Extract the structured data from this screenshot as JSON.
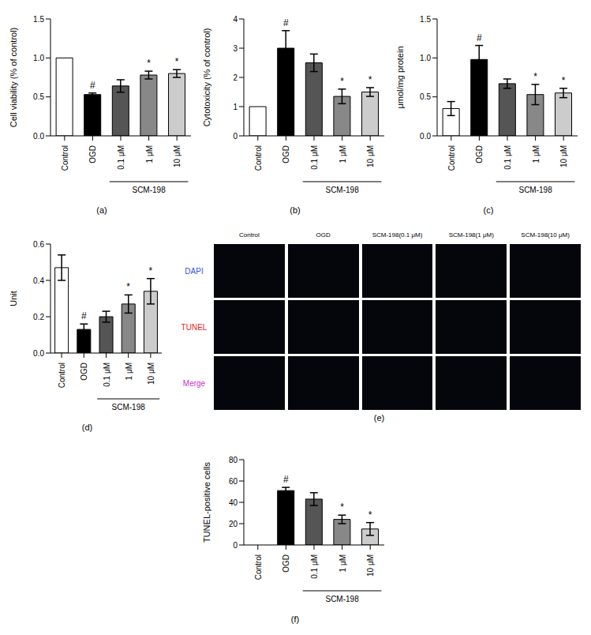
{
  "chart_data": [
    {
      "type": "bar",
      "panel": "(a)",
      "y_label": "Cell viability (% of control)",
      "categories": [
        "Control",
        "OGD",
        "0.1 μM",
        "1 μM",
        "10 μM"
      ],
      "values": [
        1.0,
        0.53,
        0.64,
        0.78,
        0.8
      ],
      "errors": [
        0,
        0.02,
        0.08,
        0.05,
        0.05
      ],
      "significance": [
        null,
        "#",
        null,
        "*",
        "*"
      ],
      "colors": [
        "#ffffff",
        "#000000",
        "#555555",
        "#888888",
        "#cccccc"
      ],
      "groups": [
        {
          "label": "SCM-198",
          "categories": [
            "0.1 μM",
            "1 μM",
            "10 μM"
          ]
        }
      ],
      "ylim": [
        0,
        1.5
      ],
      "yticks": [
        {
          "value": 0,
          "label": "0.0"
        },
        {
          "value": 0.5,
          "label": "0.5"
        },
        {
          "value": 1,
          "label": "1.0"
        },
        {
          "value": 1.5,
          "label": "1.5"
        }
      ]
    },
    {
      "type": "bar",
      "panel": "(b)",
      "y_label": "Cytotoxicity (% of control)",
      "categories": [
        "Control",
        "OGD",
        "0.1 μM",
        "1 μM",
        "10 μM"
      ],
      "values": [
        1.0,
        3.0,
        2.5,
        1.35,
        1.5
      ],
      "errors": [
        0,
        0.6,
        0.3,
        0.25,
        0.15
      ],
      "significance": [
        null,
        "#",
        null,
        "*",
        "*"
      ],
      "colors": [
        "#ffffff",
        "#000000",
        "#555555",
        "#888888",
        "#cccccc"
      ],
      "groups": [
        {
          "label": "SCM-198",
          "categories": [
            "0.1 μM",
            "1 μM",
            "10 μM"
          ]
        }
      ],
      "ylim": [
        0,
        4
      ],
      "yticks": [
        0,
        1,
        2,
        3,
        4
      ]
    },
    {
      "type": "bar",
      "panel": "(c)",
      "y_label": "μmol/mg protein",
      "categories": [
        "Control",
        "OGD",
        "0.1 μM",
        "1 μM",
        "10 μM"
      ],
      "values": [
        0.35,
        0.98,
        0.67,
        0.53,
        0.55
      ],
      "errors": [
        0.09,
        0.18,
        0.06,
        0.13,
        0.06
      ],
      "significance": [
        null,
        "#",
        null,
        "*",
        "*"
      ],
      "colors": [
        "#ffffff",
        "#000000",
        "#555555",
        "#888888",
        "#cccccc"
      ],
      "groups": [
        {
          "label": "SCM-198",
          "categories": [
            "0.1 μM",
            "1 μM",
            "10 μM"
          ]
        }
      ],
      "ylim": [
        0,
        1.5
      ],
      "yticks": [
        {
          "value": 0,
          "label": "0.0"
        },
        {
          "value": 0.5,
          "label": "0.5"
        },
        {
          "value": 1,
          "label": "1.0"
        },
        {
          "value": 1.5,
          "label": "1.5"
        }
      ]
    },
    {
      "type": "bar",
      "panel": "(d)",
      "y_label": "Unit",
      "categories": [
        "Control",
        "OGD",
        "0.1 μM",
        "1 μM",
        "10 μM"
      ],
      "values": [
        0.47,
        0.13,
        0.2,
        0.27,
        0.34
      ],
      "errors": [
        0.07,
        0.03,
        0.03,
        0.05,
        0.07
      ],
      "significance": [
        null,
        "#",
        null,
        "*",
        "*"
      ],
      "colors": [
        "#ffffff",
        "#000000",
        "#555555",
        "#888888",
        "#cccccc"
      ],
      "groups": [
        {
          "label": "SCM-198",
          "categories": [
            "0.1 μM",
            "1 μM",
            "10 μM"
          ]
        }
      ],
      "ylim": [
        0,
        0.6
      ],
      "yticks": [
        {
          "value": 0,
          "label": "0.0"
        },
        {
          "value": 0.2,
          "label": "0.2"
        },
        {
          "value": 0.4,
          "label": "0.4"
        },
        {
          "value": 0.6,
          "label": "0.6"
        }
      ]
    },
    {
      "type": "bar",
      "panel": "(f)",
      "y_label": "TUNEL-positive cells",
      "categories": [
        "Control",
        "OGD",
        "0.1 μM",
        "1 μM",
        "10 μM"
      ],
      "values": [
        0,
        51,
        43,
        24,
        15
      ],
      "errors": [
        0,
        3,
        6,
        4,
        6
      ],
      "significance": [
        null,
        "#",
        null,
        "*",
        "*"
      ],
      "colors": [
        "#ffffff",
        "#000000",
        "#555555",
        "#888888",
        "#cccccc"
      ],
      "groups": [
        {
          "label": "SCM-198",
          "categories": [
            "0.1 μM",
            "1 μM",
            "10 μM"
          ]
        }
      ],
      "ylim": [
        0,
        80
      ],
      "yticks": [
        0,
        20,
        40,
        60,
        80
      ]
    }
  ],
  "image_panel": {
    "panel": "(e)",
    "columns": [
      "Control",
      "OGD",
      "SCM-198(0.1 μM)",
      "SCM-198(1 μM)",
      "SCM-198(10 μM)"
    ],
    "rows": [
      {
        "label": "DAPI",
        "color": "#3355dd"
      },
      {
        "label": "TUNEL",
        "color": "#ee2222"
      },
      {
        "label": "Merge",
        "color": "#cc33cc"
      }
    ]
  }
}
